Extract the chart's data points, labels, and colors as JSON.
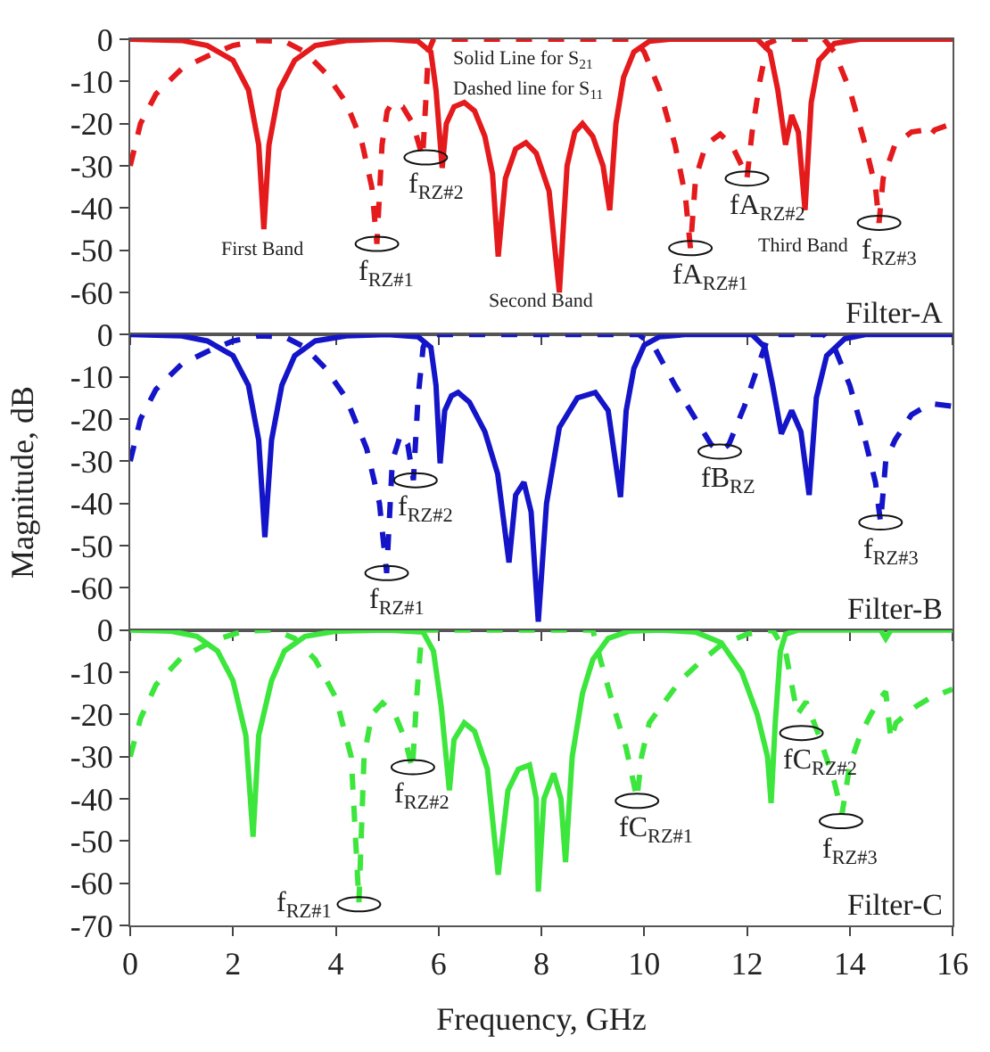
{
  "chart_data": [
    {
      "type": "line",
      "xlim": [
        0,
        16
      ],
      "xticks": [
        0,
        2,
        4,
        6,
        8,
        10,
        12,
        14,
        16
      ],
      "ylim": [
        -70,
        0
      ],
      "yticks": [
        0,
        -10,
        -20,
        -30,
        -40,
        -50,
        -60
      ],
      "tick_labels": "y",
      "grid": false,
      "series": [
        {
          "color": "#e41a1c",
          "line_style": "solid",
          "x": [
            0,
            1.0,
            1.5,
            2.0,
            2.3,
            2.5,
            2.6,
            2.7,
            2.9,
            3.2,
            3.6,
            4.2,
            5.0,
            5.6,
            5.85,
            5.95,
            6.07,
            6.15,
            6.3,
            6.5,
            6.7,
            6.9,
            7.05,
            7.16,
            7.3,
            7.5,
            7.7,
            7.9,
            8.15,
            8.35,
            8.5,
            8.65,
            8.8,
            9.0,
            9.2,
            9.33,
            9.45,
            9.6,
            9.8,
            10.1,
            10.5,
            12.2,
            12.45,
            12.6,
            12.75,
            12.87,
            13.0,
            13.13,
            13.25,
            13.4,
            13.7,
            14.2,
            16
          ],
          "values": [
            0,
            -0.3,
            -1.5,
            -5,
            -12,
            -25,
            -45,
            -25,
            -12,
            -5,
            -1.5,
            -0.3,
            0,
            -0.5,
            -3,
            -12,
            -30.5,
            -20,
            -16,
            -15,
            -17,
            -23,
            -32,
            -51.5,
            -33,
            -26,
            -24.5,
            -27,
            -36,
            -60,
            -30,
            -22,
            -20,
            -23,
            -30,
            -40.5,
            -20,
            -9,
            -3,
            -0.5,
            0,
            0,
            -3,
            -12,
            -25,
            -18,
            -22,
            -40.5,
            -15,
            -5,
            -1,
            0,
            0
          ]
        },
        {
          "color": "#e41a1c",
          "line_style": "dashed",
          "x": [
            0,
            0.2,
            0.5,
            1.0,
            1.5,
            2.0,
            2.5,
            3.0,
            3.4,
            3.8,
            4.2,
            4.5,
            4.7,
            4.8,
            4.9,
            5.0,
            5.1,
            5.3,
            5.5,
            5.69,
            5.75,
            5.8,
            5.9,
            9.8,
            10.0,
            10.3,
            10.6,
            10.8,
            10.9,
            11.0,
            11.2,
            11.48,
            11.7,
            11.9,
            12.0,
            12.1,
            12.25,
            12.4,
            12.6,
            13.5,
            13.7,
            14.0,
            14.3,
            14.5,
            14.57,
            14.65,
            14.88,
            15.2,
            15.47,
            15.55,
            15.65,
            16
          ],
          "values": [
            -30,
            -20,
            -13,
            -7,
            -4,
            -1.5,
            -0.3,
            -0.5,
            -3,
            -8,
            -15,
            -24,
            -35,
            -48.5,
            -25,
            -17,
            -15,
            -16,
            -20,
            -28,
            -15,
            -3,
            0,
            0,
            -3,
            -12,
            -25,
            -37,
            -49.5,
            -33,
            -25,
            -22.5,
            -25,
            -30,
            -33,
            -22,
            -10,
            -1,
            0,
            0,
            -3,
            -12,
            -25,
            -35,
            -43.5,
            -33,
            -25,
            -22,
            -21.5,
            -23,
            -21.5,
            -20
          ]
        }
      ],
      "annotations": [
        "Solid Line for S$_{21}$",
        "Dashed line for S$_{11}$",
        "First Band",
        "Second Band",
        "Third Band",
        "Filter-A",
        {
          "text": "f$_{RZ#1}$",
          "x": 4.8,
          "y": -48.5
        },
        {
          "text": "f$_{RZ#2}$",
          "x": 5.75,
          "y": -28
        },
        {
          "text": "fA$_{RZ#1}$",
          "x": 10.9,
          "y": -49.5
        },
        {
          "text": "fA$_{RZ#2}$",
          "x": 12.0,
          "y": -33
        },
        {
          "text": "f$_{RZ#3}$",
          "x": 14.57,
          "y": -43.5
        }
      ]
    },
    {
      "type": "line",
      "xlim": [
        0,
        16
      ],
      "xticks": [
        0,
        2,
        4,
        6,
        8,
        10,
        12,
        14,
        16
      ],
      "ylim": [
        -70,
        0
      ],
      "yticks": [
        0,
        -10,
        -20,
        -30,
        -40,
        -50,
        -60
      ],
      "tick_labels": "y",
      "grid": false,
      "ylabel": "Magnitude, dB",
      "series": [
        {
          "color": "#1414c8",
          "line_style": "solid",
          "x": [
            0,
            1.0,
            1.5,
            2.0,
            2.3,
            2.5,
            2.62,
            2.75,
            2.95,
            3.2,
            3.6,
            4.2,
            5.0,
            5.6,
            5.85,
            5.95,
            6.03,
            6.12,
            6.25,
            6.38,
            6.6,
            6.9,
            7.15,
            7.37,
            7.5,
            7.66,
            7.8,
            7.94,
            8.1,
            8.35,
            8.7,
            9.05,
            9.3,
            9.54,
            9.65,
            9.8,
            10.0,
            10.3,
            10.8,
            12.1,
            12.35,
            12.5,
            12.67,
            12.87,
            13.05,
            13.21,
            13.35,
            13.55,
            13.9,
            14.3,
            16
          ],
          "values": [
            0,
            -0.3,
            -1.5,
            -5,
            -12,
            -25,
            -48,
            -25,
            -12,
            -5,
            -1.5,
            -0.3,
            0,
            -0.5,
            -3,
            -12,
            -30.5,
            -18,
            -14.5,
            -13.7,
            -16,
            -23,
            -33,
            -54,
            -38,
            -35,
            -42,
            -68,
            -40,
            -22,
            -15,
            -13.7,
            -18,
            -38.5,
            -18,
            -8,
            -2.5,
            -0.5,
            0,
            0,
            -3,
            -12,
            -23.5,
            -18,
            -23,
            -38,
            -15,
            -5,
            -1,
            0,
            0
          ]
        },
        {
          "color": "#1414c8",
          "line_style": "dashed",
          "x": [
            0,
            0.2,
            0.5,
            1.0,
            1.5,
            2.0,
            2.5,
            3.0,
            3.4,
            3.8,
            4.2,
            4.6,
            4.85,
            4.99,
            5.1,
            5.26,
            5.4,
            5.51,
            5.6,
            5.7,
            5.8,
            9.9,
            10.2,
            10.6,
            11.0,
            11.3,
            11.47,
            11.65,
            11.95,
            12.2,
            12.4,
            12.6,
            13.5,
            13.7,
            14.0,
            14.3,
            14.5,
            14.6,
            14.7,
            14.88,
            15.2,
            15.57,
            16
          ],
          "values": [
            -30,
            -20,
            -13,
            -7,
            -4,
            -1.5,
            -0.3,
            -0.5,
            -3,
            -8,
            -15,
            -27,
            -40,
            -56.5,
            -30,
            -23.7,
            -26,
            -34.5,
            -15,
            -3,
            0,
            0,
            -3,
            -12,
            -20,
            -26,
            -27.7,
            -26,
            -17,
            -8,
            -1,
            0,
            0,
            -3,
            -12,
            -25,
            -35,
            -44.5,
            -30,
            -25,
            -19,
            -16.3,
            -17
          ]
        }
      ],
      "annotations": [
        "Filter-B",
        {
          "text": "f$_{RZ#2}$",
          "x": 5.55,
          "y": -34.5
        },
        {
          "text": "f$_{RZ#1}$",
          "x": 4.99,
          "y": -56.5
        },
        {
          "text": "fB$_{RZ}$",
          "x": 11.47,
          "y": -27.7
        },
        {
          "text": "f$_{RZ#3}$",
          "x": 14.6,
          "y": -44.5
        }
      ]
    },
    {
      "type": "line",
      "xlim": [
        0,
        16
      ],
      "xticks": [
        0,
        2,
        4,
        6,
        8,
        10,
        12,
        14,
        16
      ],
      "ylim": [
        -70,
        0
      ],
      "yticks": [
        0,
        -10,
        -20,
        -30,
        -40,
        -50,
        -60,
        -70
      ],
      "grid": false,
      "xlabel": "Frequency, GHz",
      "series": [
        {
          "color": "#3ce63c",
          "line_style": "solid",
          "x": [
            0,
            0.8,
            1.3,
            1.7,
            2.0,
            2.25,
            2.39,
            2.5,
            2.75,
            3.0,
            3.4,
            4.0,
            5.0,
            5.7,
            5.9,
            6.05,
            6.21,
            6.3,
            6.5,
            6.7,
            6.95,
            7.16,
            7.35,
            7.55,
            7.77,
            7.9,
            7.94,
            8.05,
            8.24,
            8.38,
            8.47,
            8.6,
            8.8,
            9.0,
            9.3,
            9.7,
            10.3,
            11.0,
            11.5,
            11.9,
            12.2,
            12.4,
            12.47,
            12.55,
            12.65,
            12.75,
            13.0,
            14.6,
            14.7,
            14.8,
            16
          ],
          "values": [
            0,
            -0.3,
            -1.5,
            -5,
            -12,
            -25,
            -49,
            -25,
            -12,
            -5,
            -1.5,
            -0.3,
            0,
            -0.5,
            -5,
            -18,
            -38,
            -26,
            -22,
            -24,
            -33,
            -58,
            -38,
            -33,
            -32,
            -40,
            -62,
            -40,
            -34,
            -40,
            -55,
            -30,
            -15,
            -7,
            -2,
            -0.3,
            0,
            -0.5,
            -3,
            -10,
            -20,
            -30,
            -41,
            -22,
            -5,
            -1,
            0,
            0,
            -2,
            0,
            0
          ]
        },
        {
          "color": "#3ce63c",
          "line_style": "dashed",
          "x": [
            0,
            0.2,
            0.5,
            1.0,
            1.64,
            2.2,
            2.8,
            3.2,
            3.6,
            4.0,
            4.3,
            4.45,
            4.55,
            4.7,
            4.91,
            5.15,
            5.35,
            5.49,
            5.58,
            5.65,
            5.72,
            9.0,
            9.16,
            9.4,
            9.65,
            9.86,
            9.95,
            10.1,
            10.38,
            10.7,
            11.07,
            11.5,
            12.0,
            12.5,
            12.75,
            12.98,
            13.15,
            13.4,
            13.7,
            13.85,
            14.0,
            14.2,
            14.41,
            14.6,
            14.7,
            14.8,
            14.9,
            15.0,
            15.3,
            15.58,
            16
          ],
          "values": [
            -30,
            -21,
            -13,
            -6.5,
            -2.4,
            -0.3,
            0,
            -2,
            -7,
            -16,
            -30,
            -64.5,
            -30,
            -20,
            -17.3,
            -20,
            -26,
            -33,
            -15,
            -4,
            0,
            0,
            -7.5,
            -18,
            -28,
            -40,
            -30,
            -22,
            -17.3,
            -12,
            -7.8,
            -3.5,
            -1,
            0,
            -5,
            -20,
            -17,
            -25,
            -36,
            -43.6,
            -32,
            -25,
            -20,
            -16,
            -14.6,
            -26,
            -22,
            -21,
            -18,
            -16,
            -14
          ]
        }
      ],
      "annotations": [
        "Filter-C",
        {
          "text": "f$_{RZ#1}$",
          "x": 4.45,
          "y": -65
        },
        {
          "text": "f$_{RZ#2}$",
          "x": 5.5,
          "y": -32.5
        },
        {
          "text": "fC$_{RZ#1}$",
          "x": 9.86,
          "y": -40.5
        },
        {
          "text": "fC$_{RZ#2}$",
          "x": 13.06,
          "y": -24.4
        },
        {
          "text": "f$_{RZ#3}$",
          "x": 13.83,
          "y": -45.3
        }
      ]
    }
  ]
}
